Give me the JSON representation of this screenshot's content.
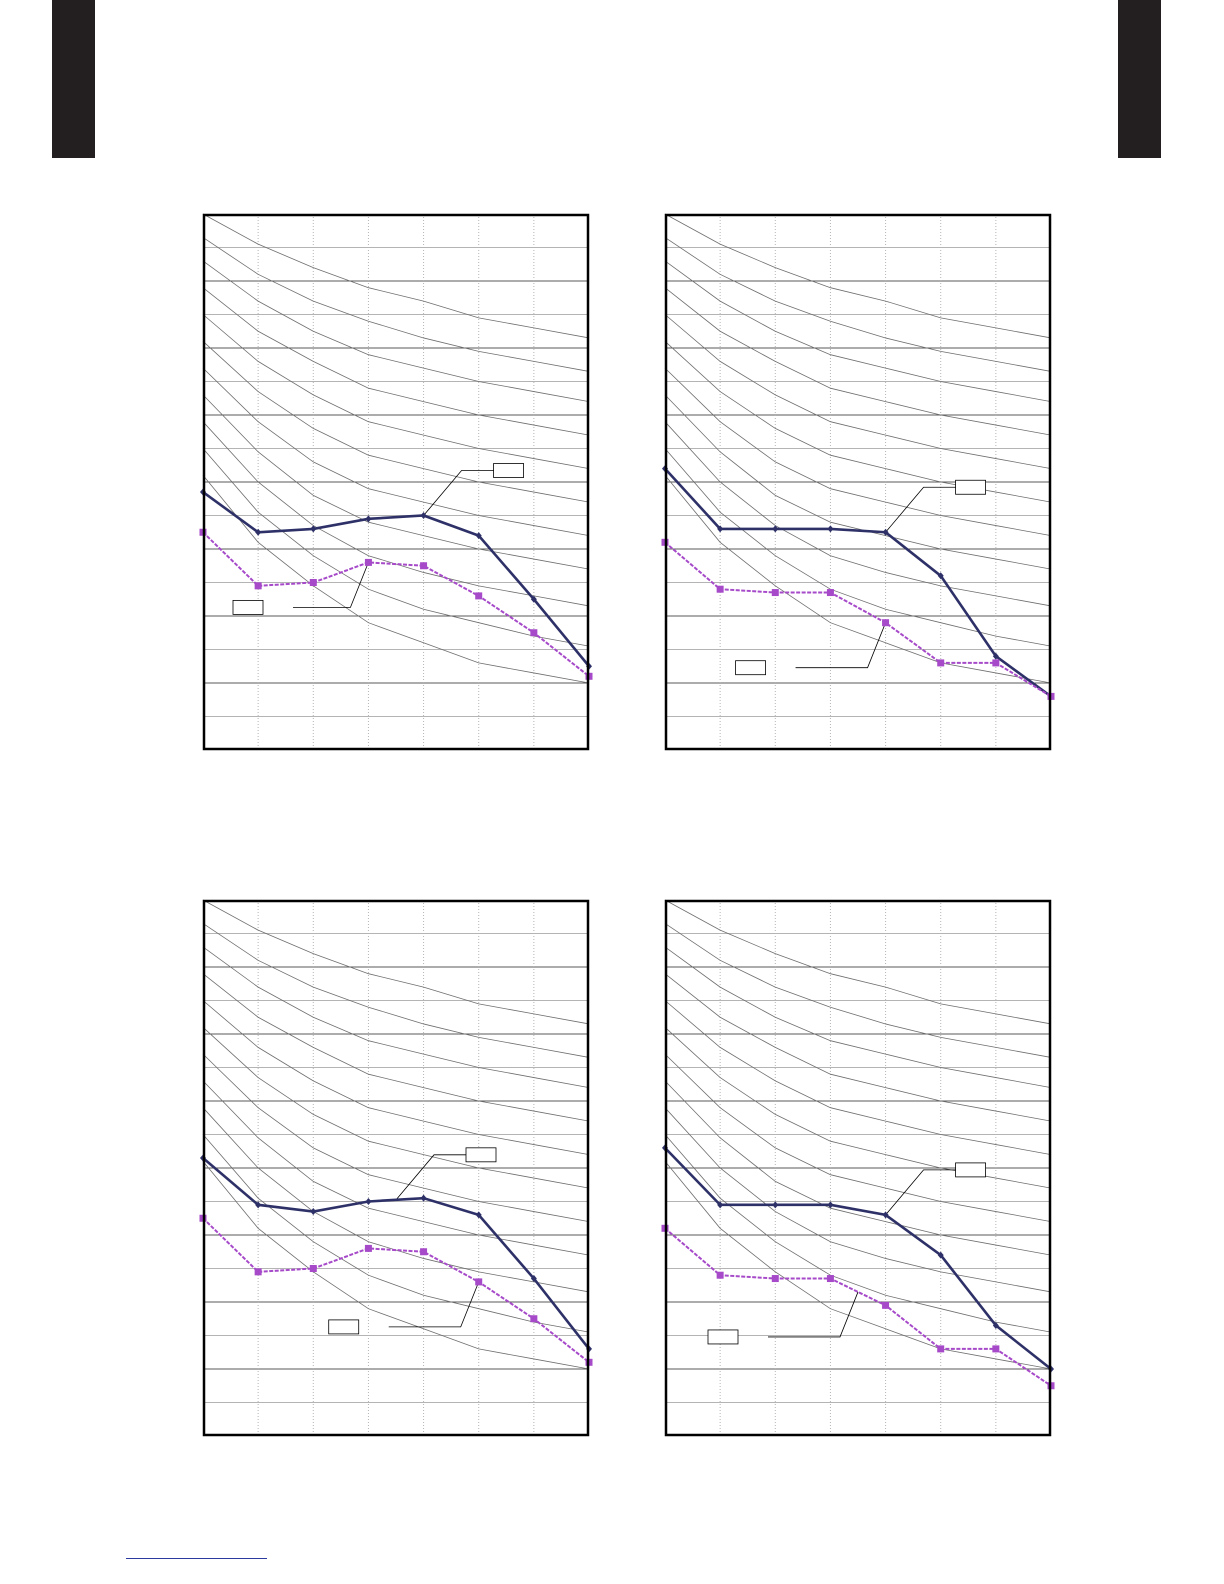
{
  "page": {
    "tab_color": "#231f20",
    "rule_color": "#2b3a9e"
  },
  "colors": {
    "frame": "#000000",
    "major_grid": "#5a5a5a",
    "minor_grid": "#b4b4b4",
    "nc_curves": "#6e6e6e",
    "series_a": "#2e3168",
    "series_b": "#a64ac9"
  },
  "chart_data": [
    {
      "type": "line",
      "title": "",
      "xlabel": "",
      "ylabel": "",
      "x": [
        1,
        2,
        3,
        4,
        5,
        6,
        7,
        8
      ],
      "xlim": [
        1,
        8
      ],
      "ylim": [
        0,
        16
      ],
      "grid": true,
      "reference_curves": [
        [
          16,
          15.1,
          14.4,
          13.8,
          13.4,
          12.9,
          12.6,
          12.3
        ],
        [
          15.3,
          14.2,
          13.4,
          12.8,
          12.3,
          11.9,
          11.6,
          11.3
        ],
        [
          14.6,
          13.4,
          12.5,
          11.8,
          11.4,
          11.0,
          10.7,
          10.4
        ],
        [
          13.8,
          12.5,
          11.6,
          10.8,
          10.4,
          10.0,
          9.7,
          9.4
        ],
        [
          13.0,
          11.6,
          10.6,
          9.8,
          9.4,
          9.0,
          8.7,
          8.4
        ],
        [
          12.2,
          10.7,
          9.6,
          8.8,
          8.4,
          8.0,
          7.7,
          7.4
        ],
        [
          11.4,
          9.8,
          8.6,
          7.8,
          7.4,
          7.0,
          6.7,
          6.4
        ],
        [
          10.6,
          8.9,
          7.6,
          6.8,
          6.4,
          6.0,
          5.7,
          5.4
        ],
        [
          9.8,
          8.0,
          6.7,
          5.8,
          5.3,
          4.9,
          4.6,
          4.3
        ],
        [
          9.0,
          7.1,
          5.8,
          4.8,
          4.2,
          3.8,
          3.4,
          3.1
        ],
        [
          8.2,
          6.2,
          4.9,
          3.8,
          3.2,
          2.6,
          2.3,
          2.0
        ]
      ],
      "series": [
        {
          "values": [
            7.7,
            6.5,
            6.6,
            6.9,
            7.0,
            6.4,
            4.5,
            2.5
          ],
          "marker": "diamond",
          "style": "solid"
        },
        {
          "values": [
            6.5,
            4.9,
            5.0,
            5.6,
            5.5,
            4.6,
            3.5,
            2.2
          ],
          "marker": "square",
          "style": "dashed"
        }
      ],
      "callouts": [
        {
          "series": 0,
          "at": 5,
          "text": ""
        },
        {
          "series": 1,
          "at": 4,
          "text": ""
        }
      ]
    },
    {
      "type": "line",
      "title": "",
      "xlabel": "",
      "ylabel": "",
      "x": [
        1,
        2,
        3,
        4,
        5,
        6,
        7,
        8
      ],
      "xlim": [
        1,
        8
      ],
      "ylim": [
        0,
        16
      ],
      "grid": true,
      "reference_curves": [
        [
          16,
          15.1,
          14.4,
          13.8,
          13.4,
          12.9,
          12.6,
          12.3
        ],
        [
          15.3,
          14.2,
          13.4,
          12.8,
          12.3,
          11.9,
          11.6,
          11.3
        ],
        [
          14.6,
          13.4,
          12.5,
          11.8,
          11.4,
          11.0,
          10.7,
          10.4
        ],
        [
          13.8,
          12.5,
          11.6,
          10.8,
          10.4,
          10.0,
          9.7,
          9.4
        ],
        [
          13.0,
          11.6,
          10.6,
          9.8,
          9.4,
          9.0,
          8.7,
          8.4
        ],
        [
          12.2,
          10.7,
          9.6,
          8.8,
          8.4,
          8.0,
          7.7,
          7.4
        ],
        [
          11.4,
          9.8,
          8.6,
          7.8,
          7.4,
          7.0,
          6.7,
          6.4
        ],
        [
          10.6,
          8.9,
          7.6,
          6.8,
          6.4,
          6.0,
          5.7,
          5.4
        ],
        [
          9.8,
          8.0,
          6.7,
          5.8,
          5.3,
          4.9,
          4.6,
          4.3
        ],
        [
          9.0,
          7.1,
          5.8,
          4.8,
          4.2,
          3.8,
          3.4,
          3.1
        ],
        [
          8.2,
          6.2,
          4.9,
          3.8,
          3.2,
          2.6,
          2.3,
          2.0
        ]
      ],
      "series": [
        {
          "values": [
            8.4,
            6.6,
            6.6,
            6.6,
            6.5,
            5.2,
            2.8,
            1.6
          ],
          "marker": "diamond",
          "style": "solid"
        },
        {
          "values": [
            6.2,
            4.8,
            4.7,
            4.7,
            3.8,
            2.6,
            2.6,
            1.6
          ],
          "marker": "square",
          "style": "dashed"
        }
      ],
      "callouts": [
        {
          "series": 0,
          "at": 5,
          "text": ""
        },
        {
          "series": 1,
          "at": 5,
          "text": ""
        }
      ]
    },
    {
      "type": "line",
      "title": "",
      "xlabel": "",
      "ylabel": "",
      "x": [
        1,
        2,
        3,
        4,
        5,
        6,
        7,
        8
      ],
      "xlim": [
        1,
        8
      ],
      "ylim": [
        0,
        16
      ],
      "grid": true,
      "reference_curves": [
        [
          16,
          15.1,
          14.4,
          13.8,
          13.4,
          12.9,
          12.6,
          12.3
        ],
        [
          15.3,
          14.2,
          13.4,
          12.8,
          12.3,
          11.9,
          11.6,
          11.3
        ],
        [
          14.6,
          13.4,
          12.5,
          11.8,
          11.4,
          11.0,
          10.7,
          10.4
        ],
        [
          13.8,
          12.5,
          11.6,
          10.8,
          10.4,
          10.0,
          9.7,
          9.4
        ],
        [
          13.0,
          11.6,
          10.6,
          9.8,
          9.4,
          9.0,
          8.7,
          8.4
        ],
        [
          12.2,
          10.7,
          9.6,
          8.8,
          8.4,
          8.0,
          7.7,
          7.4
        ],
        [
          11.4,
          9.8,
          8.6,
          7.8,
          7.4,
          7.0,
          6.7,
          6.4
        ],
        [
          10.6,
          8.9,
          7.6,
          6.8,
          6.4,
          6.0,
          5.7,
          5.4
        ],
        [
          9.8,
          8.0,
          6.7,
          5.8,
          5.3,
          4.9,
          4.6,
          4.3
        ],
        [
          9.0,
          7.1,
          5.8,
          4.8,
          4.2,
          3.8,
          3.4,
          3.1
        ],
        [
          8.2,
          6.2,
          4.9,
          3.8,
          3.2,
          2.6,
          2.3,
          2.0
        ]
      ],
      "series": [
        {
          "values": [
            8.3,
            6.9,
            6.7,
            7.0,
            7.1,
            6.6,
            4.7,
            2.6
          ],
          "marker": "diamond",
          "style": "solid"
        },
        {
          "values": [
            6.5,
            4.9,
            5.0,
            5.6,
            5.5,
            4.6,
            3.5,
            2.2
          ],
          "marker": "square",
          "style": "dashed"
        }
      ],
      "callouts": [
        {
          "series": 0,
          "at": 4.5,
          "text": ""
        },
        {
          "series": 1,
          "at": 6,
          "text": ""
        }
      ]
    },
    {
      "type": "line",
      "title": "",
      "xlabel": "",
      "ylabel": "",
      "x": [
        1,
        2,
        3,
        4,
        5,
        6,
        7,
        8
      ],
      "xlim": [
        1,
        8
      ],
      "ylim": [
        0,
        16
      ],
      "grid": true,
      "reference_curves": [
        [
          16,
          15.1,
          14.4,
          13.8,
          13.4,
          12.9,
          12.6,
          12.3
        ],
        [
          15.3,
          14.2,
          13.4,
          12.8,
          12.3,
          11.9,
          11.6,
          11.3
        ],
        [
          14.6,
          13.4,
          12.5,
          11.8,
          11.4,
          11.0,
          10.7,
          10.4
        ],
        [
          13.8,
          12.5,
          11.6,
          10.8,
          10.4,
          10.0,
          9.7,
          9.4
        ],
        [
          13.0,
          11.6,
          10.6,
          9.8,
          9.4,
          9.0,
          8.7,
          8.4
        ],
        [
          12.2,
          10.7,
          9.6,
          8.8,
          8.4,
          8.0,
          7.7,
          7.4
        ],
        [
          11.4,
          9.8,
          8.6,
          7.8,
          7.4,
          7.0,
          6.7,
          6.4
        ],
        [
          10.6,
          8.9,
          7.6,
          6.8,
          6.4,
          6.0,
          5.7,
          5.4
        ],
        [
          9.8,
          8.0,
          6.7,
          5.8,
          5.3,
          4.9,
          4.6,
          4.3
        ],
        [
          9.0,
          7.1,
          5.8,
          4.8,
          4.2,
          3.8,
          3.4,
          3.1
        ],
        [
          8.2,
          6.2,
          4.9,
          3.8,
          3.2,
          2.6,
          2.3,
          2.0
        ]
      ],
      "series": [
        {
          "values": [
            8.6,
            6.9,
            6.9,
            6.9,
            6.6,
            5.4,
            3.3,
            2.0
          ],
          "marker": "diamond",
          "style": "solid"
        },
        {
          "values": [
            6.2,
            4.8,
            4.7,
            4.7,
            3.9,
            2.6,
            2.6,
            1.5
          ],
          "marker": "square",
          "style": "dashed"
        }
      ],
      "callouts": [
        {
          "series": 0,
          "at": 5,
          "text": ""
        },
        {
          "series": 1,
          "at": 4.5,
          "text": ""
        }
      ]
    }
  ]
}
